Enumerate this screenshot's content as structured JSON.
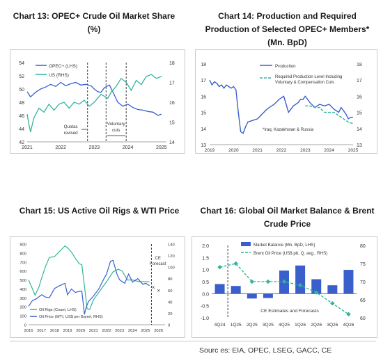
{
  "source": "Sourc es: EIA, OPEC, LSEG, GACC, CE",
  "chart_data": [
    {
      "type": "line",
      "title": "Chart 13: OPEC+ Crude Oil Market Share (%)",
      "title_lines": [
        "Chart 13: OPEC+ Crude Oil Market Share",
        "(%)"
      ],
      "x_ticks": [
        "2021",
        "2022",
        "2023",
        "2024",
        "2025"
      ],
      "y_left_ticks": [
        42,
        44,
        46,
        48,
        50,
        52,
        54
      ],
      "ylim_left": [
        42,
        54
      ],
      "y_right_ticks": [
        14,
        15,
        16,
        17,
        18
      ],
      "ylim_right": [
        14,
        18
      ],
      "legend": [
        "OPEC+ (LHS)",
        "US (RHS)"
      ],
      "series": [
        {
          "name": "OPEC+ (LHS)",
          "axis": "left",
          "color": "#3a5fcd",
          "x": [
            2021.0,
            2021.1,
            2021.25,
            2021.4,
            2021.55,
            2021.7,
            2021.85,
            2022.0,
            2022.15,
            2022.3,
            2022.45,
            2022.6,
            2022.75,
            2022.9,
            2023.0,
            2023.1,
            2023.2,
            2023.3,
            2023.45,
            2023.55,
            2023.7,
            2023.85,
            2024.0,
            2024.15,
            2024.3,
            2024.45,
            2024.6,
            2024.75,
            2024.9,
            2025.0
          ],
          "y": [
            49.6,
            48.8,
            49.5,
            50.0,
            50.3,
            50.7,
            50.4,
            51.0,
            50.5,
            50.8,
            51.0,
            50.6,
            50.7,
            50.5,
            50.0,
            49.6,
            49.5,
            50.2,
            50.6,
            49.6,
            48.0,
            47.4,
            47.7,
            47.2,
            46.9,
            46.8,
            46.6,
            46.5,
            46.0,
            46.2
          ]
        },
        {
          "name": "US (RHS)",
          "axis": "right",
          "color": "#2fb59a",
          "x": [
            2021.0,
            2021.05,
            2021.1,
            2021.2,
            2021.35,
            2021.5,
            2021.65,
            2021.8,
            2021.95,
            2022.1,
            2022.25,
            2022.4,
            2022.55,
            2022.7,
            2022.85,
            2023.0,
            2023.1,
            2023.2,
            2023.3,
            2023.4,
            2023.5,
            2023.65,
            2023.8,
            2023.95,
            2024.1,
            2024.25,
            2024.4,
            2024.55,
            2024.7,
            2024.85,
            2025.0
          ],
          "y": [
            15.4,
            14.9,
            14.5,
            15.2,
            15.7,
            15.5,
            15.9,
            15.6,
            15.9,
            16.0,
            15.7,
            16.0,
            15.9,
            16.1,
            15.8,
            16.0,
            16.2,
            16.4,
            16.3,
            16.2,
            16.5,
            16.8,
            17.2,
            17.0,
            16.6,
            17.1,
            16.9,
            17.3,
            17.4,
            17.2,
            17.3
          ]
        }
      ],
      "annotations": [
        "Quotas revised",
        "Voluntary cuts"
      ],
      "vlines_x": [
        2022.8,
        2023.35,
        2023.95
      ]
    },
    {
      "type": "line",
      "title": "Chart 14: Production and Required Production of Selected OPEC+ Members* (Mn. BpD)",
      "title_lines": [
        "Chart 14: Production and Required",
        "Production of Selected OPEC+ Members*",
        "(Mn. BpD)"
      ],
      "x_ticks": [
        "2019",
        "2020",
        "2021",
        "2022",
        "2023",
        "2024",
        "2025"
      ],
      "y_left_ticks": [
        13,
        14,
        15,
        16,
        17,
        18
      ],
      "ylim_left": [
        13,
        18
      ],
      "y_right_ticks": [
        13,
        14,
        15,
        16,
        17,
        18
      ],
      "legend": [
        "Production",
        "Required Production Level Including Voluntary & Compensation Cuts"
      ],
      "note": "*Iraq, Kazakhstan & Russia",
      "series": [
        {
          "name": "Production",
          "color": "#3a5fcd",
          "x": [
            2019.0,
            2019.1,
            2019.2,
            2019.3,
            2019.4,
            2019.5,
            2019.6,
            2019.7,
            2019.8,
            2019.9,
            2020.0,
            2020.1,
            2020.2,
            2020.3,
            2020.4,
            2020.5,
            2020.6,
            2020.8,
            2021.0,
            2021.2,
            2021.4,
            2021.5,
            2021.7,
            2021.9,
            2022.0,
            2022.1,
            2022.2,
            2022.3,
            2022.5,
            2022.7,
            2022.8,
            2022.9,
            2023.0,
            2023.2,
            2023.4,
            2023.6,
            2023.8,
            2024.0,
            2024.2,
            2024.4,
            2024.5,
            2024.6,
            2024.7,
            2024.8,
            2024.9,
            2025.0
          ],
          "y": [
            17.0,
            16.7,
            16.9,
            16.8,
            16.6,
            16.7,
            16.5,
            16.7,
            16.6,
            16.5,
            16.6,
            16.4,
            15.0,
            13.8,
            13.7,
            14.1,
            14.4,
            14.5,
            14.6,
            14.9,
            15.2,
            15.3,
            15.5,
            15.8,
            15.9,
            16.0,
            15.5,
            15.0,
            15.4,
            15.6,
            15.8,
            15.8,
            16.0,
            15.6,
            15.3,
            15.5,
            15.4,
            15.5,
            15.2,
            15.0,
            15.3,
            15.1,
            14.9,
            14.6,
            14.7,
            14.7
          ]
        },
        {
          "name": "Required Production Level Including Voluntary & Compensation Cuts",
          "color": "#2fb59a",
          "dashed": true,
          "x": [
            2023.0,
            2023.2,
            2023.4,
            2023.6,
            2023.8,
            2024.0,
            2024.2,
            2024.4,
            2024.6,
            2024.8,
            2025.0
          ],
          "y": [
            15.4,
            15.4,
            15.3,
            15.3,
            15.0,
            15.0,
            15.0,
            14.8,
            14.6,
            14.4,
            14.3
          ]
        }
      ]
    },
    {
      "type": "line",
      "title": "Chart 15: US Active Oil Rigs & WTI Price",
      "x_ticks": [
        "2016",
        "2017",
        "2018",
        "2019",
        "2020",
        "2021",
        "2022",
        "2023",
        "2024",
        "2025",
        "2026"
      ],
      "y_left_ticks": [
        0,
        100,
        200,
        300,
        400,
        500,
        600,
        700,
        800,
        900
      ],
      "ylim_left": [
        0,
        900
      ],
      "y_right_ticks": [
        0,
        20,
        40,
        60,
        80,
        100,
        120,
        140
      ],
      "ylim_right": [
        0,
        140
      ],
      "legend": [
        "Oil Rigs (Count, LHS)",
        "Oil Price (WTI, US$ per Barrel, RHS)"
      ],
      "annotation": "CE Forecast",
      "series": [
        {
          "name": "Oil Rigs (Count, LHS)",
          "axis": "left",
          "color": "#2fb59a",
          "x": [
            2016.0,
            2016.3,
            2016.5,
            2016.8,
            2017.0,
            2017.3,
            2017.6,
            2018.0,
            2018.4,
            2018.8,
            2019.0,
            2019.3,
            2019.6,
            2019.9,
            2020.1,
            2020.3,
            2020.5,
            2020.7,
            2021.0,
            2021.5,
            2022.0,
            2022.5,
            2022.9,
            2023.2,
            2023.6,
            2024.0,
            2024.5,
            2025.0,
            2025.3
          ],
          "y": [
            500,
            400,
            330,
            420,
            520,
            650,
            750,
            760,
            820,
            880,
            860,
            810,
            740,
            680,
            670,
            430,
            180,
            170,
            280,
            380,
            480,
            590,
            620,
            600,
            500,
            500,
            480,
            480,
            480
          ]
        },
        {
          "name": "Oil Price (WTI, US$ per Barrel, RHS)",
          "axis": "right",
          "color": "#3a5fcd",
          "x": [
            2016.0,
            2016.3,
            2016.6,
            2017.0,
            2017.3,
            2017.6,
            2018.0,
            2018.4,
            2018.8,
            2019.0,
            2019.3,
            2019.6,
            2019.9,
            2020.1,
            2020.3,
            2020.4,
            2020.6,
            2021.0,
            2021.4,
            2021.8,
            2022.0,
            2022.3,
            2022.5,
            2022.8,
            2023.0,
            2023.4,
            2023.7,
            2024.0,
            2024.4,
            2024.8,
            2025.0,
            2025.3
          ],
          "y": [
            32,
            42,
            45,
            52,
            48,
            47,
            63,
            68,
            72,
            52,
            62,
            56,
            58,
            58,
            18,
            28,
            40,
            50,
            62,
            80,
            88,
            110,
            112,
            88,
            78,
            72,
            88,
            74,
            80,
            70,
            72,
            68
          ]
        },
        {
          "name": "Oil Price forecast",
          "axis": "right",
          "color": "#3a5fcd",
          "marker": "x",
          "x": [
            2025.6,
            2026.0
          ],
          "y": [
            65,
            60
          ]
        }
      ]
    },
    {
      "type": "bar",
      "title": "Chart 16: Global Oil Market Balance & Brent Crude Price",
      "title_lines": [
        "Chart 16: Global Oil Market Balance & Brent",
        "Crude Price"
      ],
      "categories": [
        "4Q24",
        "1Q25",
        "2Q25",
        "3Q25",
        "4Q25",
        "1Q26",
        "2Q26",
        "3Q26",
        "4Q26"
      ],
      "y_left_ticks": [
        -1.0,
        -0.5,
        0.0,
        0.5,
        1.0,
        1.5,
        2.0
      ],
      "ylim_left": [
        -1.0,
        2.0
      ],
      "y_right_ticks": [
        60,
        65,
        70,
        75,
        80
      ],
      "ylim_right": [
        60,
        80
      ],
      "legend": [
        "Market Balance (Mn. BpD, LHS)",
        "Brent Oil Price (US$ pb, Q. avg., RHS)"
      ],
      "annotation": "CE Estimates and Forecasts",
      "series": [
        {
          "name": "Market Balance (Mn. BpD, LHS)",
          "axis": "left",
          "color": "#3a5fcd",
          "values": [
            0.4,
            0.32,
            -0.2,
            -0.18,
            0.96,
            1.17,
            0.6,
            0.35,
            0.99
          ]
        },
        {
          "name": "Brent Oil Price (US$ pb, Q. avg., RHS)",
          "axis": "right",
          "color": "#2fb59a",
          "dashed": true,
          "values": [
            74,
            75,
            70,
            70,
            70,
            69,
            67,
            64,
            61
          ]
        }
      ]
    }
  ]
}
